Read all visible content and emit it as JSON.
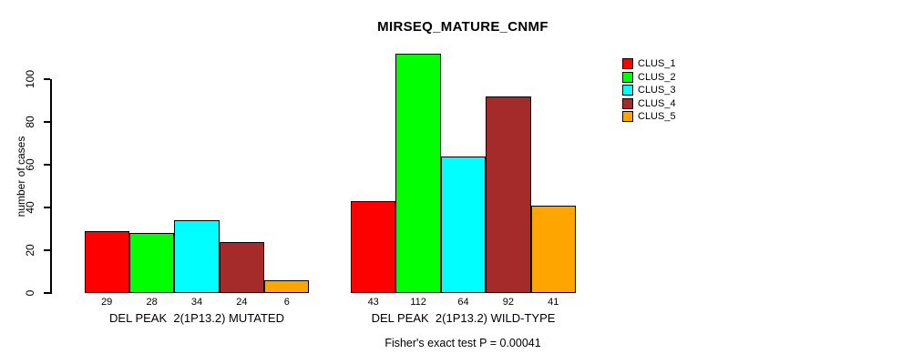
{
  "chart_data": {
    "type": "bar",
    "title": "MIRSEQ_MATURE_CNMF",
    "ylabel": "number of cases",
    "annotation": "Fisher's exact test P = 0.00041",
    "yticks": [
      0,
      20,
      40,
      60,
      80,
      100
    ],
    "ylim": [
      0,
      112
    ],
    "grid": false,
    "legend_position": "top-right",
    "axis_color": "#000000",
    "categories": [
      "DEL PEAK  2(1P13.2) MUTATED",
      "DEL PEAK  2(1P13.2) WILD-TYPE"
    ],
    "series": [
      {
        "name": "CLUS_1",
        "color": "#FF0000",
        "values": [
          29,
          43
        ]
      },
      {
        "name": "CLUS_2",
        "color": "#00FF00",
        "values": [
          28,
          112
        ]
      },
      {
        "name": "CLUS_3",
        "color": "#00FFFF",
        "values": [
          34,
          64
        ]
      },
      {
        "name": "CLUS_4",
        "color": "#A52A2A",
        "values": [
          24,
          92
        ]
      },
      {
        "name": "CLUS_5",
        "color": "#FFA500",
        "values": [
          6,
          41
        ]
      }
    ]
  }
}
